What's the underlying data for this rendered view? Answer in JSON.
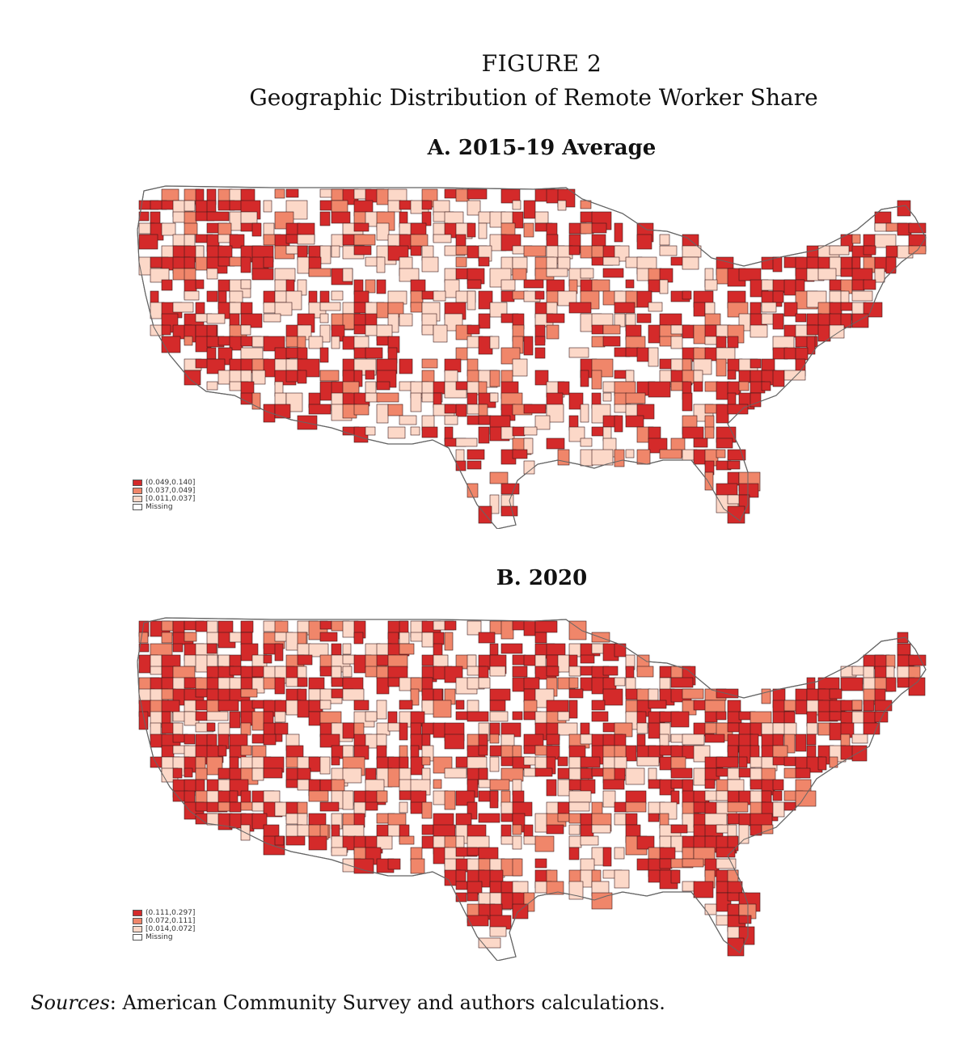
{
  "figure": {
    "number": "FIGURE 2",
    "title": "Geographic Distribution of Remote Worker Share"
  },
  "panels": [
    {
      "title": "A. 2015-19 Average",
      "legend": [
        {
          "label": "(0.049,0.140]",
          "color": "#d42a2a"
        },
        {
          "label": "(0.037,0.049]",
          "color": "#f0866a"
        },
        {
          "label": "[0.011,0.037]",
          "color": "#fcd8c8"
        },
        {
          "label": "Missing",
          "color": "#ffffff"
        }
      ]
    },
    {
      "title": "B. 2020",
      "legend": [
        {
          "label": "(0.111,0.297]",
          "color": "#d42a2a"
        },
        {
          "label": "(0.072,0.111]",
          "color": "#f0866a"
        },
        {
          "label": "[0.014,0.072]",
          "color": "#fcd8c8"
        },
        {
          "label": "Missing",
          "color": "#ffffff"
        }
      ]
    }
  ],
  "sources": {
    "lead": "Sources",
    "text": ": American Community Survey and authors calculations."
  }
}
